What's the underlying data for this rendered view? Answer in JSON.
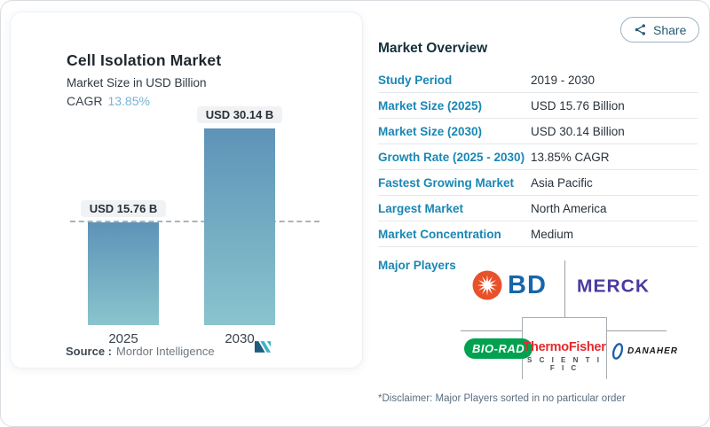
{
  "card": {
    "title": "Cell Isolation Market",
    "subtitle": "Market Size in USD Billion",
    "cagr_label": "CAGR",
    "cagr_value": "13.85%",
    "source_label": "Source :",
    "source_value": "Mordor Intelligence"
  },
  "chart_data": {
    "type": "bar",
    "categories": [
      "2025",
      "2030"
    ],
    "values": [
      15.76,
      30.14
    ],
    "value_labels": [
      "USD 15.76 B",
      "USD 30.14 B"
    ],
    "title": "Cell Isolation Market",
    "ylabel": "Market Size in USD Billion",
    "ylim": [
      0,
      32
    ],
    "grid": false,
    "reference_line_at": 15.76,
    "bar_gradient": [
      "#5e93b8",
      "#8ac4cd"
    ]
  },
  "share": {
    "label": "Share"
  },
  "overview": {
    "title": "Market Overview",
    "rows": [
      {
        "label": "Study Period",
        "value": "2019 - 2030"
      },
      {
        "label": "Market Size (2025)",
        "value": "USD 15.76 Billion"
      },
      {
        "label": "Market Size (2030)",
        "value": "USD 30.14 Billion"
      },
      {
        "label": "Growth Rate (2025 - 2030)",
        "value": "13.85% CAGR"
      },
      {
        "label": "Fastest Growing Market",
        "value": "Asia Pacific"
      },
      {
        "label": "Largest Market",
        "value": "North America"
      },
      {
        "label": "Market Concentration",
        "value": "Medium"
      }
    ],
    "major_players_label": "Major Players",
    "players": [
      "BD",
      "Merck",
      "Bio-Rad",
      "Thermo Fisher Scientific",
      "Danaher"
    ],
    "disclaimer": "*Disclaimer: Major Players sorted in no particular order"
  },
  "logos": {
    "bd_text": "BD",
    "merck_text": "MERCK",
    "biorad_text": "BIO-RAD",
    "thermo_line1": "ThermoFisher",
    "thermo_line2": "S C I E N T I F I C",
    "danaher_text": "DANAHER"
  },
  "colors": {
    "label_blue": "#1987b5",
    "cagr_blue": "#76b4d4",
    "share_teal": "#2a5a72",
    "bd_blue": "#1766a9",
    "bd_orange": "#e8512a",
    "merck_purple": "#4b3a9f",
    "biorad_green": "#00a14f",
    "thermo_red": "#e22a2e",
    "danaher_blue": "#1d5fa8",
    "mi_navy": "#1e5d7d",
    "mi_teal": "#38b5c4"
  }
}
